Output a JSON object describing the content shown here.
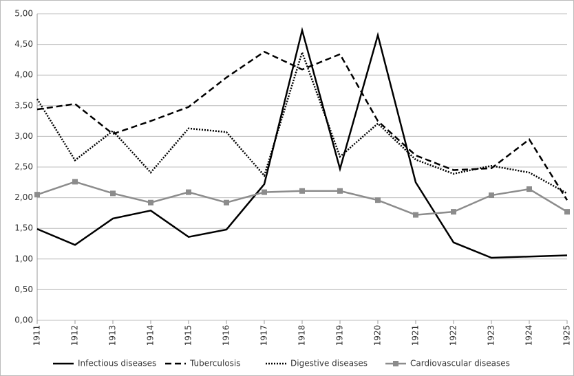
{
  "chart_data": {
    "type": "line",
    "categories": [
      "1911",
      "1912",
      "1913",
      "1914",
      "1915",
      "1916",
      "1917",
      "1918",
      "1919",
      "1920",
      "1921",
      "1922",
      "1923",
      "1924",
      "1925"
    ],
    "series": [
      {
        "name": "Infectious diseases",
        "color": "#000000",
        "style": "solid",
        "values": [
          1.49,
          1.23,
          1.66,
          1.79,
          1.36,
          1.48,
          2.22,
          4.73,
          2.47,
          4.65,
          2.25,
          1.27,
          1.02,
          1.04,
          1.06
        ]
      },
      {
        "name": "Tuberculosis",
        "color": "#000000",
        "style": "dashed",
        "values": [
          3.44,
          3.53,
          3.04,
          3.25,
          3.48,
          3.96,
          4.38,
          4.09,
          4.34,
          3.25,
          2.69,
          2.45,
          2.48,
          2.95,
          1.96
        ]
      },
      {
        "name": "Digestive diseases",
        "color": "#000000",
        "style": "dotted",
        "values": [
          3.61,
          2.61,
          3.09,
          2.41,
          3.13,
          3.07,
          2.36,
          4.37,
          2.67,
          3.21,
          2.62,
          2.39,
          2.52,
          2.41,
          2.07
        ]
      },
      {
        "name": "Cardiovascular diseases",
        "color": "#8c8c8c",
        "style": "solid",
        "marker": "square",
        "values": [
          2.05,
          2.26,
          2.07,
          1.92,
          2.09,
          1.92,
          2.09,
          2.11,
          2.11,
          1.96,
          1.72,
          1.77,
          2.04,
          2.14,
          1.77
        ]
      }
    ],
    "ylim": [
      0,
      5
    ],
    "yticks": [
      {
        "value": 0,
        "label": "0,00"
      },
      {
        "value": 0.5,
        "label": "0,50"
      },
      {
        "value": 1,
        "label": "1,00"
      },
      {
        "value": 1.5,
        "label": "1,50"
      },
      {
        "value": 2,
        "label": "2,00"
      },
      {
        "value": 2.5,
        "label": "2,50"
      },
      {
        "value": 3,
        "label": "3,00"
      },
      {
        "value": 3.5,
        "label": "3,50"
      },
      {
        "value": 4,
        "label": "4,00"
      },
      {
        "value": 4.5,
        "label": "4,50"
      },
      {
        "value": 5,
        "label": "5,00"
      }
    ],
    "grid": true,
    "legend": "bottom"
  }
}
